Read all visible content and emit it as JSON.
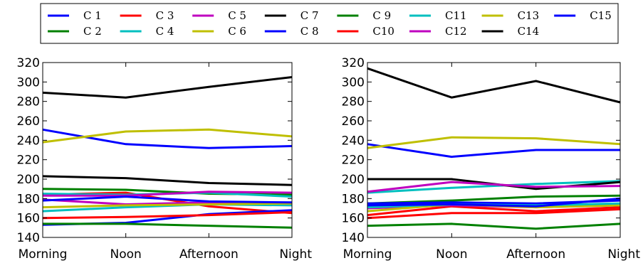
{
  "chart_data": [
    {
      "type": "line",
      "categories": [
        "Morning",
        "Noon",
        "Afternoon",
        "Night"
      ],
      "ylim": [
        140,
        320
      ],
      "yticks": [
        140,
        160,
        180,
        200,
        220,
        240,
        260,
        280,
        300,
        320
      ],
      "legend_placement": "top-center",
      "series": [
        {
          "name": "C 1",
          "color": "#0000ff",
          "values": [
            251,
            236,
            232,
            234
          ]
        },
        {
          "name": "C 2",
          "color": "#008000",
          "values": [
            190,
            189,
            185,
            184
          ]
        },
        {
          "name": "C 3",
          "color": "#ff0000",
          "values": [
            184,
            186,
            172,
            165
          ]
        },
        {
          "name": "C 4",
          "color": "#00bfbf",
          "values": [
            167,
            171,
            174,
            173
          ]
        },
        {
          "name": "C 5",
          "color": "#bf00bf",
          "values": [
            179,
            174,
            176,
            175
          ]
        },
        {
          "name": "C 6",
          "color": "#bfbf00",
          "values": [
            171,
            173,
            174,
            175
          ]
        },
        {
          "name": "C 7",
          "color": "#000000",
          "values": [
            203,
            201,
            196,
            194
          ]
        },
        {
          "name": "C 8",
          "color": "#0000ff",
          "values": [
            153,
            155,
            164,
            168
          ]
        },
        {
          "name": "C 9",
          "color": "#008000",
          "values": [
            154,
            154,
            152,
            150
          ]
        },
        {
          "name": "C10",
          "color": "#ff0000",
          "values": [
            160,
            161,
            163,
            166
          ]
        },
        {
          "name": "C11",
          "color": "#00bfbf",
          "values": [
            185,
            184,
            186,
            182
          ]
        },
        {
          "name": "C12",
          "color": "#bf00bf",
          "values": [
            183,
            183,
            187,
            186
          ]
        },
        {
          "name": "C13",
          "color": "#bfbf00",
          "values": [
            238,
            249,
            251,
            244
          ]
        },
        {
          "name": "C14",
          "color": "#000000",
          "values": [
            289,
            284,
            295,
            305
          ]
        },
        {
          "name": "C15",
          "color": "#0000ff",
          "values": [
            178,
            182,
            177,
            176
          ]
        }
      ]
    },
    {
      "type": "line",
      "categories": [
        "Morning",
        "Noon",
        "Afternoon",
        "Night"
      ],
      "ylim": [
        140,
        320
      ],
      "yticks": [
        140,
        160,
        180,
        200,
        220,
        240,
        260,
        280,
        300,
        320
      ],
      "series": [
        {
          "name": "C 1",
          "color": "#0000ff",
          "values": [
            236,
            223,
            230,
            230
          ]
        },
        {
          "name": "C 2",
          "color": "#008000",
          "values": [
            175,
            178,
            182,
            183
          ]
        },
        {
          "name": "C 3",
          "color": "#ff0000",
          "values": [
            163,
            172,
            167,
            171
          ]
        },
        {
          "name": "C 4",
          "color": "#00bfbf",
          "values": [
            186,
            191,
            195,
            198
          ]
        },
        {
          "name": "C 5",
          "color": "#bf00bf",
          "values": [
            170,
            173,
            171,
            173
          ]
        },
        {
          "name": "C 6",
          "color": "#bfbf00",
          "values": [
            167,
            174,
            171,
            173
          ]
        },
        {
          "name": "C 7",
          "color": "#000000",
          "values": [
            200,
            200,
            190,
            197
          ]
        },
        {
          "name": "C 8",
          "color": "#0000ff",
          "values": [
            175,
            176,
            175,
            178
          ]
        },
        {
          "name": "C 9",
          "color": "#008000",
          "values": [
            152,
            154,
            149,
            154
          ]
        },
        {
          "name": "C10",
          "color": "#ff0000",
          "values": [
            160,
            165,
            165,
            169
          ]
        },
        {
          "name": "C11",
          "color": "#00bfbf",
          "values": [
            171,
            174,
            173,
            175
          ]
        },
        {
          "name": "C12",
          "color": "#bf00bf",
          "values": [
            187,
            197,
            192,
            193
          ]
        },
        {
          "name": "C13",
          "color": "#bfbf00",
          "values": [
            232,
            243,
            242,
            236
          ]
        },
        {
          "name": "C14",
          "color": "#000000",
          "values": [
            314,
            284,
            301,
            279
          ]
        },
        {
          "name": "C15",
          "color": "#0000ff",
          "values": [
            173,
            174,
            172,
            180
          ]
        }
      ]
    }
  ]
}
